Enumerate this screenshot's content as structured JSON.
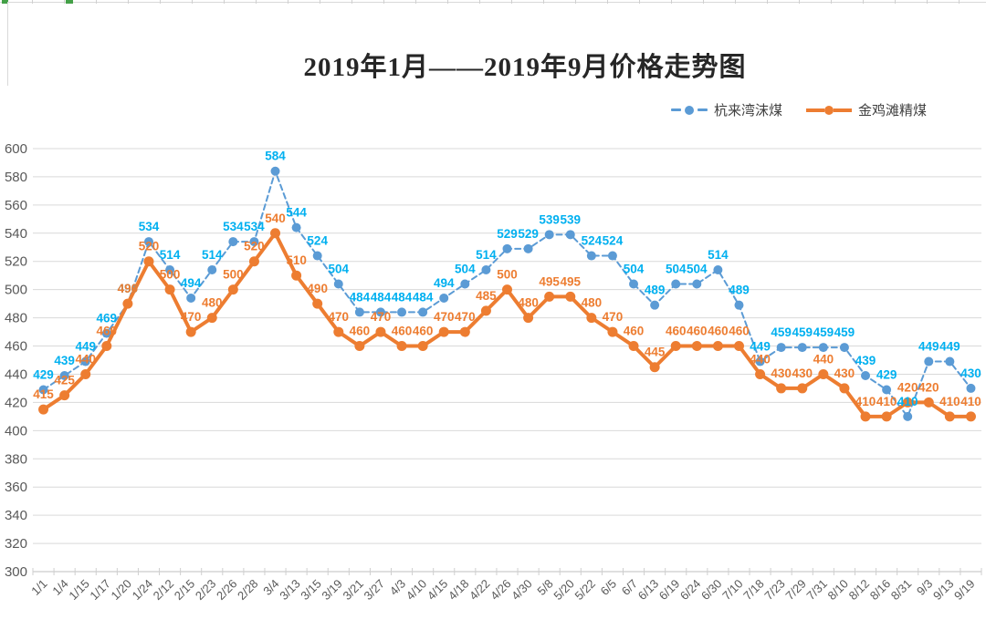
{
  "title": "2019年1月——2019年9月价格走势图",
  "legend": {
    "items": [
      {
        "label": "杭来湾沫煤"
      },
      {
        "label": "金鸡滩精煤"
      }
    ]
  },
  "chart_data": {
    "type": "line",
    "title": "2019年1月——2019年9月价格走势图",
    "categories": [
      "1/1",
      "1/4",
      "1/15",
      "1/17",
      "1/20",
      "1/24",
      "2/12",
      "2/15",
      "2/23",
      "2/26",
      "2/28",
      "3/4",
      "3/13",
      "3/15",
      "3/19",
      "3/21",
      "3/27",
      "4/3",
      "4/10",
      "4/15",
      "4/18",
      "4/22",
      "4/26",
      "4/30",
      "5/8",
      "5/20",
      "5/22",
      "6/5",
      "6/7",
      "6/13",
      "6/19",
      "6/24",
      "6/30",
      "7/10",
      "7/18",
      "7/23",
      "7/29",
      "7/31",
      "8/10",
      "8/12",
      "8/16",
      "8/31",
      "9/3",
      "9/13",
      "9/19"
    ],
    "series": [
      {
        "name": "杭来湾沫煤",
        "line_style": "dashed",
        "marker": "circle",
        "color": "#5B9BD5",
        "label_color": "#00B0F0",
        "values": [
          429,
          439,
          449,
          469,
          490,
          534,
          514,
          494,
          514,
          534,
          534,
          584,
          544,
          524,
          504,
          484,
          484,
          484,
          484,
          494,
          504,
          514,
          529,
          529,
          539,
          539,
          524,
          524,
          504,
          489,
          504,
          504,
          514,
          489,
          449,
          459,
          459,
          459,
          459,
          439,
          429,
          410,
          449,
          449,
          430
        ]
      },
      {
        "name": "金鸡滩精煤",
        "line_style": "solid",
        "marker": "circle",
        "color": "#ED7D31",
        "label_color": "#ED7D31",
        "values": [
          415,
          425,
          440,
          460,
          490,
          520,
          500,
          470,
          480,
          500,
          520,
          540,
          510,
          490,
          470,
          460,
          470,
          460,
          460,
          470,
          470,
          485,
          500,
          480,
          495,
          495,
          480,
          470,
          460,
          445,
          460,
          460,
          460,
          460,
          440,
          430,
          430,
          440,
          430,
          410,
          410,
          420,
          420,
          410,
          410
        ]
      }
    ],
    "ylim": [
      300,
      600
    ],
    "ytick_step": 20,
    "yticks": [
      300,
      320,
      340,
      360,
      380,
      400,
      420,
      440,
      460,
      480,
      500,
      520,
      540,
      560,
      580,
      600
    ],
    "grid": true,
    "legend_position": "top-right",
    "grid_color": "#D9D9D9",
    "axis_line_color": "#BFBFBF",
    "axis_text_color": "#595959",
    "title_color": "#262626"
  }
}
